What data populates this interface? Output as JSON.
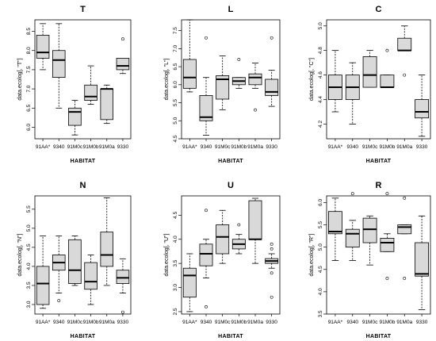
{
  "chart_data": [
    {
      "type": "boxplot",
      "title": "T",
      "xlabel": "HABITAT",
      "ylabel": "data.ecolog[, \"T\"]",
      "ylim": [
        5.7,
        8.8
      ],
      "yticks": [
        6.0,
        6.5,
        7.0,
        7.5,
        8.0,
        8.5
      ],
      "categories": [
        "91AA*",
        "9340",
        "91M0c",
        "91M0b",
        "91M0a",
        "9330"
      ],
      "boxes": [
        {
          "min": 7.5,
          "q1": 7.8,
          "median": 7.95,
          "q3": 8.4,
          "max": 8.7,
          "outliers": []
        },
        {
          "min": 6.5,
          "q1": 7.3,
          "median": 7.75,
          "q3": 8.0,
          "max": 8.7,
          "outliers": []
        },
        {
          "min": 5.8,
          "q1": 6.05,
          "median": 6.4,
          "q3": 6.5,
          "max": 6.7,
          "outliers": []
        },
        {
          "min": 6.6,
          "q1": 6.7,
          "median": 6.8,
          "q3": 7.1,
          "max": 7.6,
          "outliers": []
        },
        {
          "min": 6.1,
          "q1": 6.2,
          "median": 7.0,
          "q3": 7.0,
          "max": 7.1,
          "outliers": []
        },
        {
          "min": 7.4,
          "q1": 7.5,
          "median": 7.6,
          "q3": 7.8,
          "max": 7.8,
          "outliers": [
            8.3
          ]
        }
      ]
    },
    {
      "type": "boxplot",
      "title": "L",
      "xlabel": "HABITAT",
      "ylabel": "data.ecolog[, \"L\"]",
      "ylim": [
        4.5,
        7.8
      ],
      "yticks": [
        4.5,
        5.0,
        5.5,
        6.0,
        6.5,
        7.0,
        7.5
      ],
      "categories": [
        "91AA*",
        "9340",
        "91M0c",
        "91M0b",
        "91M0a",
        "9330"
      ],
      "boxes": [
        {
          "min": 5.8,
          "q1": 5.9,
          "median": 6.2,
          "q3": 6.7,
          "max": 7.8,
          "outliers": []
        },
        {
          "min": 4.6,
          "q1": 5.0,
          "median": 5.1,
          "q3": 5.7,
          "max": 6.2,
          "outliers": [
            7.3
          ]
        },
        {
          "min": 5.3,
          "q1": 5.6,
          "median": 6.15,
          "q3": 6.25,
          "max": 6.8,
          "outliers": []
        },
        {
          "min": 5.9,
          "q1": 6.0,
          "median": 6.1,
          "q3": 6.2,
          "max": 6.2,
          "outliers": [
            6.7
          ]
        },
        {
          "min": 5.9,
          "q1": 6.0,
          "median": 6.2,
          "q3": 6.3,
          "max": 6.6,
          "outliers": [
            5.3
          ]
        },
        {
          "min": 5.4,
          "q1": 5.7,
          "median": 5.8,
          "q3": 6.15,
          "max": 6.4,
          "outliers": [
            7.3
          ]
        }
      ]
    },
    {
      "type": "boxplot",
      "title": "C",
      "xlabel": "HABITAT",
      "ylabel": "data.ecolog[, \"C\"]",
      "ylim": [
        4.08,
        5.05
      ],
      "yticks": [
        4.2,
        4.4,
        4.6,
        4.8,
        5.0
      ],
      "categories": [
        "91AA*",
        "9340",
        "91M0c",
        "91M0b",
        "91M0a",
        "9330"
      ],
      "boxes": [
        {
          "min": 4.3,
          "q1": 4.4,
          "median": 4.5,
          "q3": 4.6,
          "max": 4.8,
          "outliers": []
        },
        {
          "min": 4.2,
          "q1": 4.4,
          "median": 4.5,
          "q3": 4.6,
          "max": 4.7,
          "outliers": []
        },
        {
          "min": 4.5,
          "q1": 4.5,
          "median": 4.6,
          "q3": 4.75,
          "max": 4.8,
          "outliers": []
        },
        {
          "min": 4.5,
          "q1": 4.5,
          "median": 4.5,
          "q3": 4.6,
          "max": 4.6,
          "outliers": [
            4.8
          ]
        },
        {
          "min": 4.8,
          "q1": 4.8,
          "median": 4.8,
          "q3": 4.9,
          "max": 5.0,
          "outliers": [
            4.6
          ]
        },
        {
          "min": 4.1,
          "q1": 4.25,
          "median": 4.3,
          "q3": 4.4,
          "max": 4.6,
          "outliers": []
        }
      ]
    },
    {
      "type": "boxplot",
      "title": "N",
      "xlabel": "HABITAT",
      "ylabel": "data.ecolog[, \"N\"]",
      "ylim": [
        2.75,
        5.85
      ],
      "yticks": [
        3.0,
        3.5,
        4.0,
        4.5,
        5.0,
        5.5
      ],
      "categories": [
        "91AA*",
        "9340",
        "91M0c",
        "91M0b",
        "91M0a",
        "9330"
      ],
      "boxes": [
        {
          "min": 2.9,
          "q1": 3.0,
          "median": 3.55,
          "q3": 4.0,
          "max": 4.8,
          "outliers": []
        },
        {
          "min": 3.3,
          "q1": 3.9,
          "median": 4.1,
          "q3": 4.3,
          "max": 4.8,
          "outliers": [
            3.1
          ]
        },
        {
          "min": 3.5,
          "q1": 3.55,
          "median": 3.9,
          "q3": 4.7,
          "max": 4.8,
          "outliers": []
        },
        {
          "min": 3.0,
          "q1": 3.4,
          "median": 3.6,
          "q3": 4.1,
          "max": 4.3,
          "outliers": []
        },
        {
          "min": 3.5,
          "q1": 4.0,
          "median": 4.3,
          "q3": 4.9,
          "max": 5.8,
          "outliers": []
        },
        {
          "min": 3.3,
          "q1": 3.55,
          "median": 3.7,
          "q3": 3.9,
          "max": 4.2,
          "outliers": [
            2.8
          ]
        }
      ]
    },
    {
      "type": "boxplot",
      "title": "U",
      "xlabel": "HABITAT",
      "ylabel": "data.ecolog[, \"U\"]",
      "ylim": [
        2.45,
        4.9
      ],
      "yticks": [
        2.5,
        3.0,
        3.5,
        4.0,
        4.5
      ],
      "categories": [
        "91AA*",
        "9340",
        "91M0c",
        "91M0b",
        "91M0a",
        "9330"
      ],
      "boxes": [
        {
          "min": 2.5,
          "q1": 2.8,
          "median": 3.25,
          "q3": 3.4,
          "max": 3.7,
          "outliers": []
        },
        {
          "min": 3.2,
          "q1": 3.45,
          "median": 3.7,
          "q3": 3.9,
          "max": 4.0,
          "outliers": [
            4.6,
            2.6
          ]
        },
        {
          "min": 3.5,
          "q1": 3.7,
          "median": 4.05,
          "q3": 4.3,
          "max": 4.6,
          "outliers": []
        },
        {
          "min": 3.7,
          "q1": 3.8,
          "median": 3.9,
          "q3": 4.0,
          "max": 4.1,
          "outliers": [
            4.3
          ]
        },
        {
          "min": 3.5,
          "q1": 4.0,
          "median": 4.0,
          "q3": 4.8,
          "max": 4.85,
          "outliers": []
        },
        {
          "min": 3.4,
          "q1": 3.5,
          "median": 3.55,
          "q3": 3.6,
          "max": 3.7,
          "outliers": [
            3.8,
            3.9,
            3.3,
            2.8
          ]
        }
      ]
    },
    {
      "type": "boxplot",
      "title": "R",
      "xlabel": "HABITAT",
      "ylabel": "data.ecolog[, \"R\"]",
      "ylim": [
        3.5,
        6.15
      ],
      "yticks": [
        3.5,
        4.0,
        4.5,
        5.0,
        5.5,
        6.0
      ],
      "categories": [
        "91AA*",
        "9340",
        "91M0c",
        "91M0b",
        "91M0a",
        "9330"
      ],
      "boxes": [
        {
          "min": 4.7,
          "q1": 5.3,
          "median": 5.35,
          "q3": 5.8,
          "max": 6.1,
          "outliers": []
        },
        {
          "min": 4.7,
          "q1": 5.0,
          "median": 5.3,
          "q3": 5.4,
          "max": 5.6,
          "outliers": [
            6.2
          ]
        },
        {
          "min": 4.6,
          "q1": 5.1,
          "median": 5.4,
          "q3": 5.65,
          "max": 5.7,
          "outliers": []
        },
        {
          "min": 4.9,
          "q1": 4.9,
          "median": 5.1,
          "q3": 5.2,
          "max": 5.3,
          "outliers": [
            6.2,
            4.3
          ]
        },
        {
          "min": 5.3,
          "q1": 5.3,
          "median": 5.45,
          "q3": 5.5,
          "max": 5.5,
          "outliers": [
            6.1,
            4.3
          ]
        },
        {
          "min": 3.6,
          "q1": 4.35,
          "median": 4.4,
          "q3": 5.1,
          "max": 5.7,
          "outliers": []
        }
      ]
    }
  ]
}
